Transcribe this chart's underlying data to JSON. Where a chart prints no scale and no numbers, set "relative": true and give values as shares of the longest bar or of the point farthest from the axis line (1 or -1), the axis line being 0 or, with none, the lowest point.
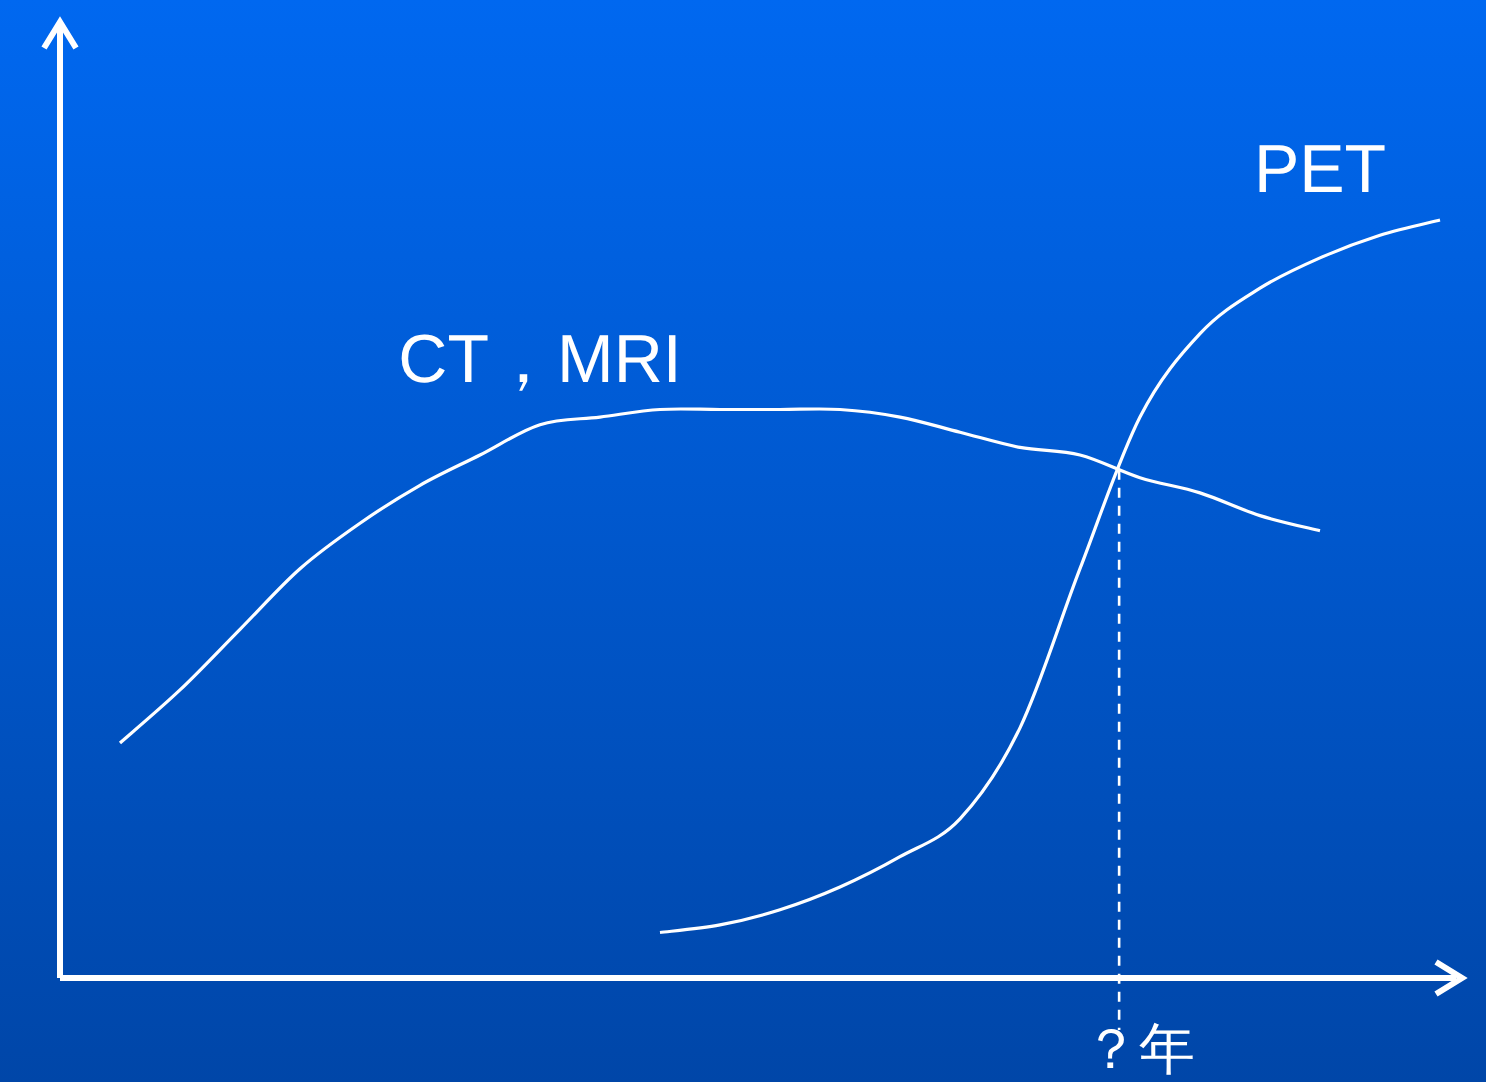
{
  "chart_data": {
    "type": "line",
    "relative": true,
    "categories": [
      null,
      null,
      null,
      null,
      null,
      null,
      null,
      null,
      null,
      null,
      null,
      null,
      null,
      null,
      null,
      null,
      null,
      null,
      null,
      null,
      null,
      null,
      null
    ],
    "series": [
      {
        "name": "CT，MRI",
        "color": "#ffffff",
        "values": [
          0.31,
          0.38,
          0.46,
          0.54,
          0.6,
          0.65,
          0.69,
          0.73,
          0.74,
          0.75,
          0.75,
          0.75,
          0.75,
          0.74,
          0.72,
          0.7,
          0.69,
          0.66,
          0.64,
          0.61,
          0.59,
          null,
          null
        ]
      },
      {
        "name": "PET",
        "color": "#ffffff",
        "values": [
          null,
          null,
          null,
          null,
          null,
          null,
          null,
          null,
          null,
          0.06,
          0.07,
          0.09,
          0.12,
          0.16,
          0.21,
          0.33,
          0.54,
          0.74,
          0.85,
          0.91,
          0.95,
          0.98,
          1
        ]
      }
    ],
    "annotations": [
      "？年"
    ]
  }
}
